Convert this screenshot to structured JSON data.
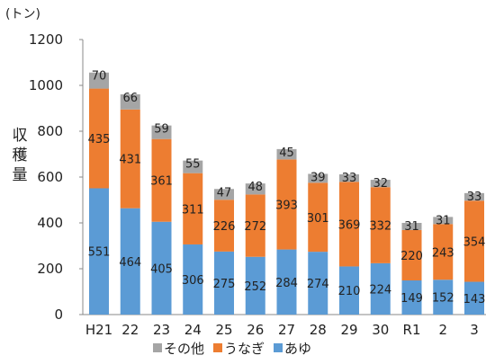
{
  "chart_data": {
    "type": "bar",
    "stacked": true,
    "unit": "(トン)",
    "ylabel": "収穫量",
    "ylim": [
      0,
      1200
    ],
    "yticks": [
      0,
      200,
      400,
      600,
      800,
      1000,
      1200
    ],
    "grid": false,
    "legend_position": "bottom",
    "categories": [
      "H21",
      "22",
      "23",
      "24",
      "25",
      "26",
      "27",
      "28",
      "29",
      "30",
      "R1",
      "2",
      "3"
    ],
    "series": [
      {
        "name": "あゆ",
        "color": "#5B9BD5",
        "values": [
          551,
          464,
          405,
          306,
          275,
          252,
          284,
          274,
          210,
          224,
          149,
          152,
          143
        ]
      },
      {
        "name": "うなぎ",
        "color": "#ED7D31",
        "values": [
          435,
          431,
          361,
          311,
          226,
          272,
          393,
          301,
          369,
          332,
          220,
          243,
          354
        ]
      },
      {
        "name": "その他",
        "color": "#A5A5A5",
        "values": [
          70,
          66,
          59,
          55,
          47,
          48,
          45,
          39,
          33,
          32,
          31,
          31,
          33
        ]
      }
    ],
    "legend_order": [
      "その他",
      "うなぎ",
      "あゆ"
    ]
  }
}
